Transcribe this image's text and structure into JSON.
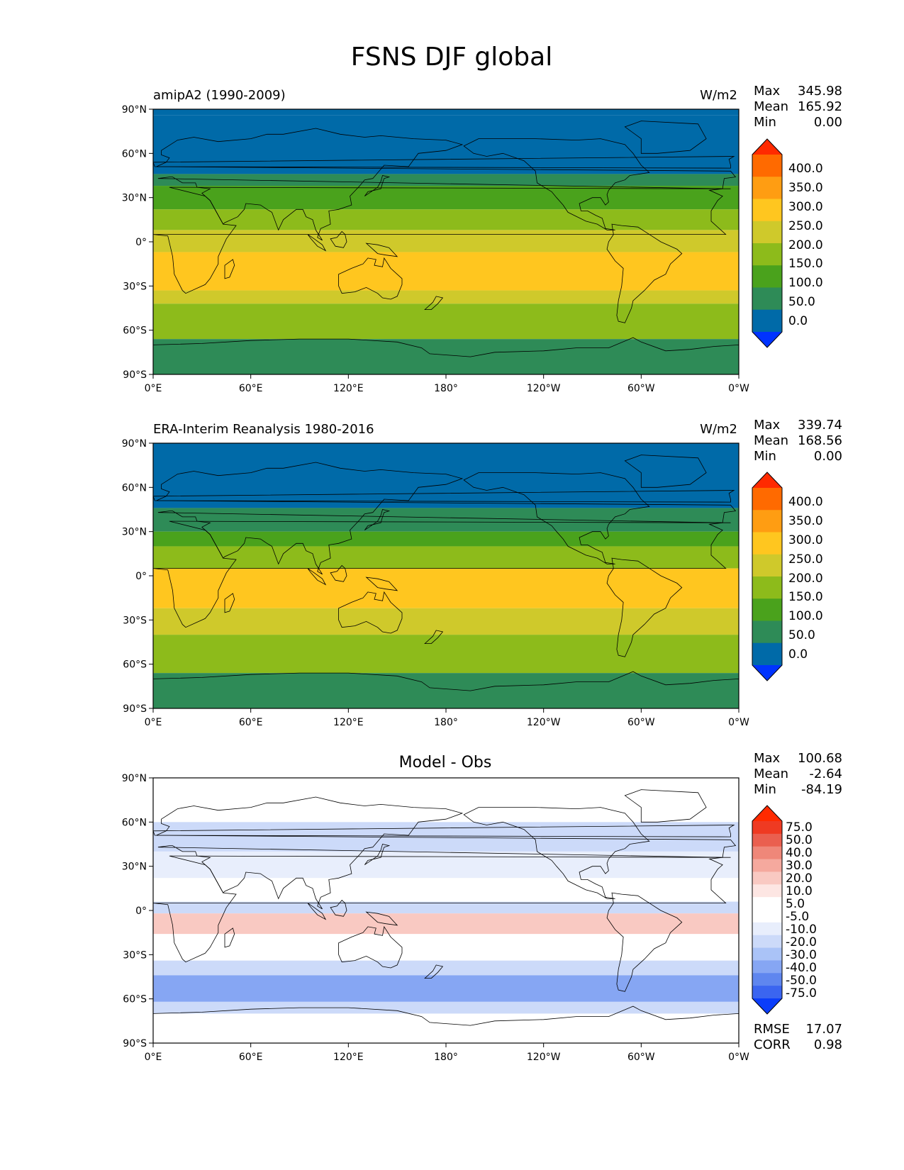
{
  "figure": {
    "title": "FSNS DJF global"
  },
  "axes": {
    "lat_ticks": [
      "90°N",
      "60°N",
      "30°N",
      "0°",
      "30°S",
      "60°S",
      "90°S"
    ],
    "lon_ticks": [
      "0°E",
      "60°E",
      "120°E",
      "180°",
      "120°W",
      "60°W",
      "0°W"
    ]
  },
  "colors": {
    "levels_main": [
      "#0033ff",
      "#006aa8",
      "#2e8b57",
      "#4aa21c",
      "#8dbb1b",
      "#cfc92b",
      "#ffc61f",
      "#ff9d12",
      "#ff6a00",
      "#ff2a00"
    ],
    "levels_diff": [
      "#0b3dfa",
      "#3b65f0",
      "#5f86ef",
      "#86a6f3",
      "#aac3f7",
      "#ccdaf9",
      "#e8eefc",
      "#ffffff",
      "#ffffff",
      "#fde6e3",
      "#f9c9c2",
      "#f5a99e",
      "#ef8779",
      "#ea5f4f",
      "#ef3a22",
      "#ff2a00"
    ]
  },
  "panels": [
    {
      "title_left": "amipA2 (1990-2009)",
      "units": "W/m2",
      "stats": [
        {
          "label": "Max",
          "value": "345.98"
        },
        {
          "label": "Mean",
          "value": "165.92"
        },
        {
          "label": "Min",
          "value": "0.00"
        }
      ],
      "colorbar_labels": [
        "400.0",
        "350.0",
        "300.0",
        "250.0",
        "200.0",
        "150.0",
        "100.0",
        "50.0",
        "0.0"
      ]
    },
    {
      "title_left": "ERA-Interim Reanalysis 1980-2016",
      "units": "W/m2",
      "stats": [
        {
          "label": "Max",
          "value": "339.74"
        },
        {
          "label": "Mean",
          "value": "168.56"
        },
        {
          "label": "Min",
          "value": "0.00"
        }
      ],
      "colorbar_labels": [
        "400.0",
        "350.0",
        "300.0",
        "250.0",
        "200.0",
        "150.0",
        "100.0",
        "50.0",
        "0.0"
      ]
    },
    {
      "title_center": "Model - Obs",
      "stats": [
        {
          "label": "Max",
          "value": "100.68"
        },
        {
          "label": "Mean",
          "value": "-2.64"
        },
        {
          "label": "Min",
          "value": "-84.19"
        }
      ],
      "colorbar_labels": [
        "75.0",
        "50.0",
        "40.0",
        "30.0",
        "20.0",
        "10.0",
        "5.0",
        "-5.0",
        "-10.0",
        "-20.0",
        "-30.0",
        "-40.0",
        "-50.0",
        "-75.0"
      ],
      "extra_stats": [
        {
          "label": "RMSE",
          "value": "17.07"
        },
        {
          "label": "CORR",
          "value": "0.98"
        }
      ]
    }
  ],
  "chart_data": [
    {
      "type": "heatmap",
      "title": "amipA2 (1990-2009)",
      "units": "W/m2",
      "xlim": [
        0,
        360
      ],
      "ylim": [
        -90,
        90
      ],
      "levels": [
        0,
        50,
        100,
        150,
        200,
        250,
        300,
        350,
        400
      ],
      "stats": {
        "max": 345.98,
        "mean": 165.92,
        "min": 0.0
      },
      "zonal_bands": [
        {
          "lat": [
            86,
            90
          ],
          "value": 0
        },
        {
          "lat": [
            46,
            86
          ],
          "value": 25
        },
        {
          "lat": [
            38,
            46
          ],
          "value": 75
        },
        {
          "lat": [
            22,
            38
          ],
          "value": 125
        },
        {
          "lat": [
            8,
            22
          ],
          "value": 175
        },
        {
          "lat": [
            -7,
            8
          ],
          "value": 225
        },
        {
          "lat": [
            -33,
            -7
          ],
          "value": 275
        },
        {
          "lat": [
            -42,
            -33
          ],
          "value": 225
        },
        {
          "lat": [
            -66,
            -42
          ],
          "value": 175
        },
        {
          "lat": [
            -90,
            -66
          ],
          "value": 75
        }
      ]
    },
    {
      "type": "heatmap",
      "title": "ERA-Interim Reanalysis 1980-2016",
      "units": "W/m2",
      "xlim": [
        0,
        360
      ],
      "ylim": [
        -90,
        90
      ],
      "levels": [
        0,
        50,
        100,
        150,
        200,
        250,
        300,
        350,
        400
      ],
      "stats": {
        "max": 339.74,
        "mean": 168.56,
        "min": 0.0
      },
      "zonal_bands": [
        {
          "lat": [
            46,
            90
          ],
          "value": 25
        },
        {
          "lat": [
            30,
            46
          ],
          "value": 75
        },
        {
          "lat": [
            20,
            30
          ],
          "value": 125
        },
        {
          "lat": [
            5,
            20
          ],
          "value": 175
        },
        {
          "lat": [
            -22,
            5
          ],
          "value": 275
        },
        {
          "lat": [
            -40,
            -22
          ],
          "value": 225
        },
        {
          "lat": [
            -66,
            -40
          ],
          "value": 175
        },
        {
          "lat": [
            -90,
            -66
          ],
          "value": 75
        }
      ]
    },
    {
      "type": "heatmap",
      "title": "Model - Obs",
      "xlim": [
        0,
        360
      ],
      "ylim": [
        -90,
        90
      ],
      "levels": [
        -75,
        -50,
        -40,
        -30,
        -20,
        -10,
        -5,
        5,
        10,
        20,
        30,
        40,
        50,
        75
      ],
      "stats": {
        "max": 100.68,
        "mean": -2.64,
        "min": -84.19,
        "rmse": 17.07,
        "corr": 0.98
      },
      "zonal_bands": [
        {
          "lat": [
            60,
            90
          ],
          "value": 0
        },
        {
          "lat": [
            40,
            60
          ],
          "value": -15
        },
        {
          "lat": [
            22,
            40
          ],
          "value": -7
        },
        {
          "lat": [
            6,
            22
          ],
          "value": 0
        },
        {
          "lat": [
            -2,
            6
          ],
          "value": -12
        },
        {
          "lat": [
            -16,
            -2
          ],
          "value": 20
        },
        {
          "lat": [
            -34,
            -16
          ],
          "value": 8
        },
        {
          "lat": [
            -44,
            -34
          ],
          "value": -15
        },
        {
          "lat": [
            -62,
            -44
          ],
          "value": -35
        },
        {
          "lat": [
            -70,
            -62
          ],
          "value": -15
        },
        {
          "lat": [
            -90,
            -70
          ],
          "value": 0
        }
      ]
    }
  ]
}
